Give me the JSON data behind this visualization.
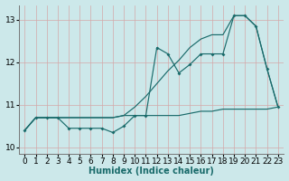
{
  "xlabel": "Humidex (Indice chaleur)",
  "xlim": [
    -0.5,
    23.5
  ],
  "ylim": [
    9.85,
    13.35
  ],
  "yticks": [
    10,
    11,
    12,
    13
  ],
  "xticks": [
    0,
    1,
    2,
    3,
    4,
    5,
    6,
    7,
    8,
    9,
    10,
    11,
    12,
    13,
    14,
    15,
    16,
    17,
    18,
    19,
    20,
    21,
    22,
    23
  ],
  "background_color": "#cce8ea",
  "grid_color": "#b8d8da",
  "line_color": "#1a6b6b",
  "x": [
    0,
    1,
    2,
    3,
    4,
    5,
    6,
    7,
    8,
    9,
    10,
    11,
    12,
    13,
    14,
    15,
    16,
    17,
    18,
    19,
    20,
    21,
    22,
    23
  ],
  "y_wiggly": [
    10.4,
    10.7,
    10.7,
    10.7,
    10.45,
    10.45,
    10.45,
    10.45,
    10.35,
    10.5,
    10.75,
    10.75,
    12.35,
    12.2,
    11.75,
    11.95,
    12.2,
    12.2,
    12.2,
    13.1,
    13.1,
    12.85,
    11.85,
    10.95
  ],
  "y_flat": [
    10.4,
    10.7,
    10.7,
    10.7,
    10.7,
    10.7,
    10.7,
    10.7,
    10.7,
    10.75,
    10.75,
    10.75,
    10.75,
    10.75,
    10.75,
    10.8,
    10.85,
    10.85,
    10.9,
    10.9,
    10.9,
    10.9,
    10.9,
    10.95
  ],
  "y_diag": [
    10.4,
    10.7,
    10.7,
    10.7,
    10.7,
    10.7,
    10.7,
    10.7,
    10.7,
    10.75,
    10.95,
    11.2,
    11.5,
    11.8,
    12.05,
    12.35,
    12.55,
    12.65,
    12.65,
    13.1,
    13.1,
    12.85,
    11.85,
    10.95
  ]
}
